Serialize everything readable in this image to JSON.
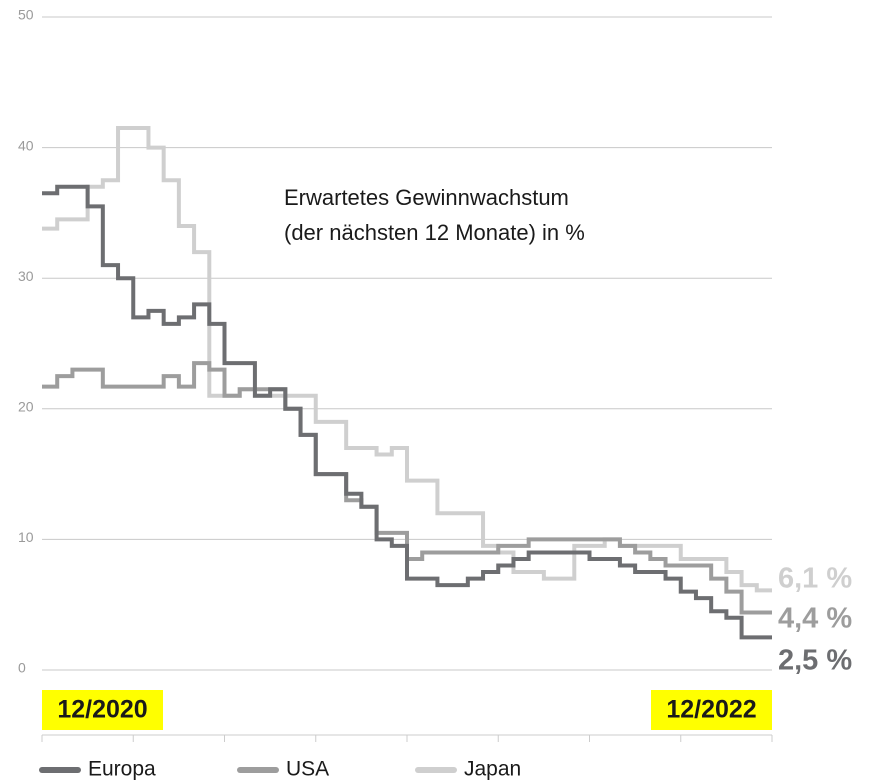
{
  "chart_data": {
    "type": "step",
    "annotation": [
      "Erwartetes Gewinnwachstum",
      "(der nächsten 12 Monate) in %"
    ],
    "categories": [
      "12/2020",
      null,
      null,
      null,
      null,
      null,
      null,
      null,
      null,
      null,
      null,
      null,
      null,
      null,
      null,
      null,
      null,
      null,
      null,
      null,
      null,
      null,
      null,
      null,
      null,
      null,
      null,
      null,
      null,
      null,
      null,
      null,
      null,
      null,
      null,
      null,
      null,
      null,
      null,
      null,
      null,
      null,
      null,
      null,
      null,
      null,
      null,
      null,
      "12/2022"
    ],
    "series": [
      {
        "name": "Europa",
        "color": "#6d6e71",
        "last_label": "2,5 %",
        "values": [
          36.5,
          37,
          37,
          35.5,
          31,
          30,
          27,
          27.5,
          26.5,
          27,
          28,
          26.5,
          23.5,
          23.5,
          21,
          21.5,
          20,
          18,
          15,
          15,
          13.5,
          12.5,
          10,
          9.5,
          7,
          7,
          6.5,
          6.5,
          7,
          7.5,
          8,
          8.5,
          9,
          9,
          9,
          9,
          8.5,
          8.5,
          8,
          7.5,
          7.5,
          7,
          6,
          5.5,
          4.5,
          4,
          2.5,
          2.5,
          2.5
        ]
      },
      {
        "name": "USA",
        "color": "#9d9d9d",
        "last_label": "4,4 %",
        "values": [
          21.7,
          22.5,
          23,
          23,
          21.7,
          21.7,
          21.7,
          21.7,
          22.5,
          21.7,
          23.5,
          23,
          21,
          21.5,
          21.5,
          21.5,
          20,
          18,
          15,
          15,
          13,
          12.5,
          10.5,
          10.5,
          8.5,
          9,
          9,
          9,
          9,
          9,
          9.5,
          9.5,
          10,
          10,
          10,
          10,
          10,
          10,
          9.5,
          9,
          8.5,
          8,
          8,
          8,
          7,
          6,
          4.4,
          4.4,
          4.4
        ]
      },
      {
        "name": "Japan",
        "color": "#cfcfcf",
        "last_label": "6,1 %",
        "values": [
          33.8,
          34.5,
          34.5,
          37,
          37.5,
          41.5,
          41.5,
          40,
          37.5,
          34,
          32,
          21,
          21,
          21.5,
          21,
          21,
          21,
          21,
          19,
          19,
          17,
          17,
          16.5,
          17,
          14.5,
          14.5,
          12,
          12,
          12,
          9.5,
          9,
          7.5,
          7.5,
          7,
          7,
          9.5,
          9.5,
          10,
          9.5,
          9.5,
          9.5,
          9.5,
          8.5,
          8.5,
          8.5,
          7.5,
          6.5,
          6.1,
          6.1
        ]
      }
    ],
    "ylim": [
      0,
      50
    ],
    "yticks": [
      0,
      10,
      20,
      30,
      40,
      50
    ],
    "grid": true,
    "highlight_color": "#ffff00"
  }
}
